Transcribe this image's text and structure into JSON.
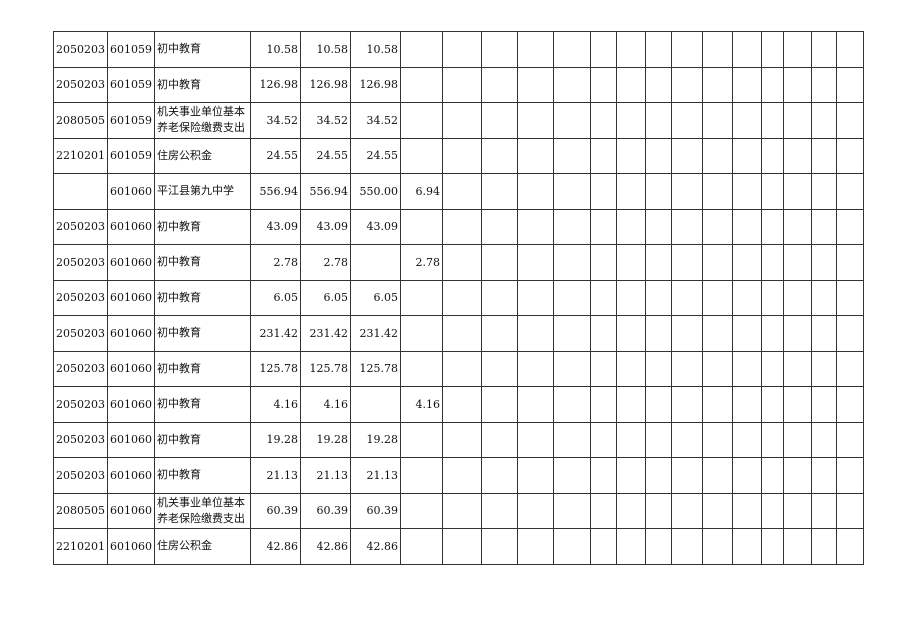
{
  "blank_columns": 14,
  "rows": [
    [
      "2050203",
      "601059",
      "初中教育",
      "10.58",
      "10.58",
      "10.58",
      ""
    ],
    [
      "2050203",
      "601059",
      "初中教育",
      "126.98",
      "126.98",
      "126.98",
      ""
    ],
    [
      "2080505",
      "601059",
      "机关事业单位基本养老保险缴费支出",
      "34.52",
      "34.52",
      "34.52",
      ""
    ],
    [
      "2210201",
      "601059",
      "住房公积金",
      "24.55",
      "24.55",
      "24.55",
      ""
    ],
    [
      "",
      "601060",
      "平江县第九中学",
      "556.94",
      "556.94",
      "550.00",
      "6.94"
    ],
    [
      "2050203",
      "601060",
      "初中教育",
      "43.09",
      "43.09",
      "43.09",
      ""
    ],
    [
      "2050203",
      "601060",
      "初中教育",
      "2.78",
      "2.78",
      "",
      "2.78"
    ],
    [
      "2050203",
      "601060",
      "初中教育",
      "6.05",
      "6.05",
      "6.05",
      ""
    ],
    [
      "2050203",
      "601060",
      "初中教育",
      "231.42",
      "231.42",
      "231.42",
      ""
    ],
    [
      "2050203",
      "601060",
      "初中教育",
      "125.78",
      "125.78",
      "125.78",
      ""
    ],
    [
      "2050203",
      "601060",
      "初中教育",
      "4.16",
      "4.16",
      "",
      "4.16"
    ],
    [
      "2050203",
      "601060",
      "初中教育",
      "19.28",
      "19.28",
      "19.28",
      ""
    ],
    [
      "2050203",
      "601060",
      "初中教育",
      "21.13",
      "21.13",
      "21.13",
      ""
    ],
    [
      "2080505",
      "601060",
      "机关事业单位基本养老保险缴费支出",
      "60.39",
      "60.39",
      "60.39",
      ""
    ],
    [
      "2210201",
      "601060",
      "住房公积金",
      "42.86",
      "42.86",
      "42.86",
      ""
    ]
  ]
}
